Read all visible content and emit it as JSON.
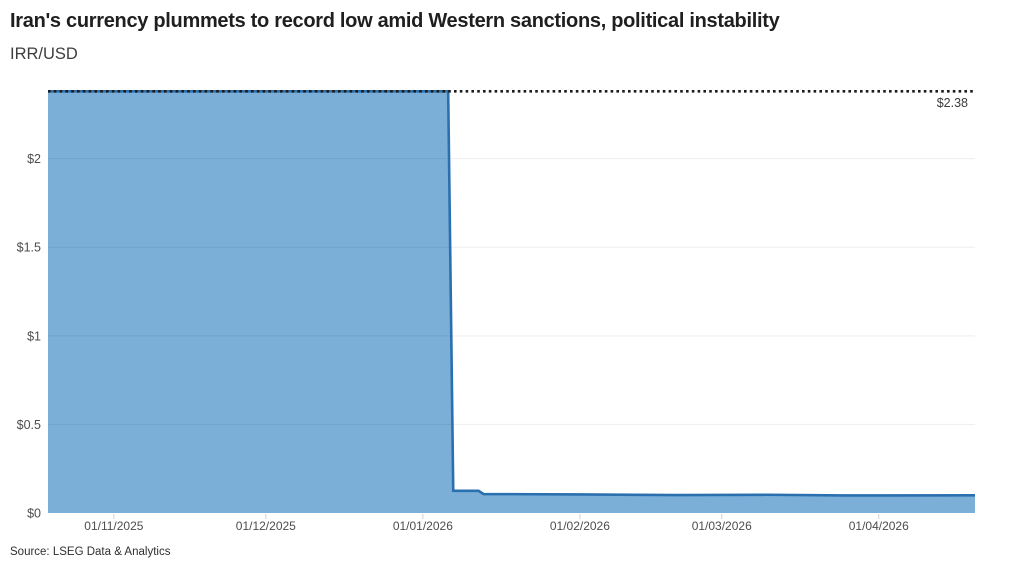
{
  "header": {
    "title": "Iran's currency plummets to record low amid Western sanctions, political instability",
    "subtitle": "IRR/USD"
  },
  "footer": {
    "source": "Source: LSEG Data & Analytics"
  },
  "chart_data": {
    "type": "area",
    "title": "Iran's currency plummets to record low amid Western sanctions, political instability",
    "subtitle": "IRR/USD",
    "xlabel": "",
    "ylabel": "",
    "x_domain": [
      "2025-10-19",
      "2026-04-20"
    ],
    "y_domain": [
      0,
      2.41
    ],
    "grid": true,
    "legend": "none",
    "series": [
      {
        "name": "IRR/USD",
        "points": [
          {
            "date": "2025-10-19",
            "value": 2.38
          },
          {
            "date": "2026-01-06",
            "value": 2.38
          },
          {
            "date": "2026-01-07",
            "value": 0.125
          },
          {
            "date": "2026-01-12",
            "value": 0.125
          },
          {
            "date": "2026-01-13",
            "value": 0.107
          },
          {
            "date": "2026-02-01",
            "value": 0.105
          },
          {
            "date": "2026-02-20",
            "value": 0.101
          },
          {
            "date": "2026-03-10",
            "value": 0.103
          },
          {
            "date": "2026-03-25",
            "value": 0.099
          },
          {
            "date": "2026-04-20",
            "value": 0.1
          }
        ]
      }
    ],
    "x_ticks": [
      {
        "date": "2025-11-01",
        "label": "01/11/2025"
      },
      {
        "date": "2025-12-01",
        "label": "01/12/2025"
      },
      {
        "date": "2026-01-01",
        "label": "01/01/2026"
      },
      {
        "date": "2026-02-01",
        "label": "01/02/2026"
      },
      {
        "date": "2026-03-01",
        "label": "01/03/2026"
      },
      {
        "date": "2026-04-01",
        "label": "01/04/2026"
      }
    ],
    "y_ticks": [
      {
        "value": 0,
        "label": "$0"
      },
      {
        "value": 0.5,
        "label": "$0.5"
      },
      {
        "value": 1,
        "label": "$1"
      },
      {
        "value": 1.5,
        "label": "$1.5"
      },
      {
        "value": 2,
        "label": "$2"
      }
    ],
    "reference_line": {
      "value": 2.38,
      "label": "$2.38",
      "style": "dotted"
    },
    "colors": {
      "area_fill": "#7bafd8",
      "line_stroke": "#2b70ae",
      "gridline": "rgba(0,0,0,0.07)",
      "reference_line": "#1c1c1c",
      "axis_text": "#4d4d4d",
      "tick_mark": "#d0d0d0"
    }
  }
}
